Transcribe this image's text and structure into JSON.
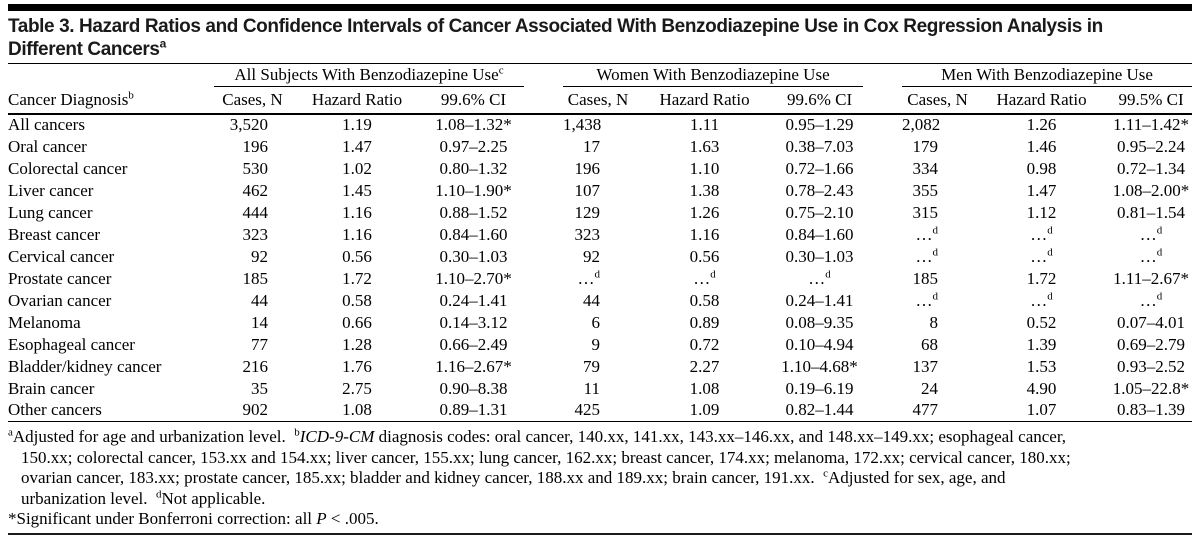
{
  "title": {
    "line1": "Table 3. Hazard Ratios and Confidence Intervals of Cancer Associated With Benzodiazepine Use in Cox Regression Analysis in",
    "line2": "Different Cancers",
    "sup": "a"
  },
  "table": {
    "row_header": {
      "label": "Cancer Diagnosis",
      "sup": "b"
    },
    "groups": [
      {
        "label": "All Subjects With Benzodiazepine Use",
        "sup": "c",
        "columns": [
          "Cases, N",
          "Hazard Ratio",
          "99.6% CI"
        ]
      },
      {
        "label": "Women With Benzodiazepine Use",
        "sup": "",
        "columns": [
          "Cases, N",
          "Hazard Ratio",
          "99.6% CI"
        ]
      },
      {
        "label": "Men With Benzodiazepine Use",
        "sup": "",
        "columns": [
          "Cases, N",
          "Hazard Ratio",
          "99.5% CI"
        ]
      }
    ],
    "rows": [
      {
        "diagnosis": "All cancers",
        "cells": [
          "3,520",
          "1.19",
          "1.08–1.32*",
          "1,438",
          "1.11",
          "0.95–1.29",
          "2,082",
          "1.26",
          "1.11–1.42*"
        ]
      },
      {
        "diagnosis": "Oral cancer",
        "cells": [
          "196",
          "1.47",
          "0.97–2.25",
          "17",
          "1.63",
          "0.38–7.03",
          "179",
          "1.46",
          "0.95–2.24"
        ]
      },
      {
        "diagnosis": "Colorectal cancer",
        "cells": [
          "530",
          "1.02",
          "0.80–1.32",
          "196",
          "1.10",
          "0.72–1.66",
          "334",
          "0.98",
          "0.72–1.34"
        ]
      },
      {
        "diagnosis": "Liver cancer",
        "cells": [
          "462",
          "1.45",
          "1.10–1.90*",
          "107",
          "1.38",
          "0.78–2.43",
          "355",
          "1.47",
          "1.08–2.00*"
        ]
      },
      {
        "diagnosis": "Lung cancer",
        "cells": [
          "444",
          "1.16",
          "0.88–1.52",
          "129",
          "1.26",
          "0.75–2.10",
          "315",
          "1.12",
          "0.81–1.54"
        ]
      },
      {
        "diagnosis": "Breast cancer",
        "cells": [
          "323",
          "1.16",
          "0.84–1.60",
          "323",
          "1.16",
          "0.84–1.60",
          "…^d",
          "…^d",
          "…^d"
        ]
      },
      {
        "diagnosis": "Cervical cancer",
        "cells": [
          "92",
          "0.56",
          "0.30–1.03",
          "92",
          "0.56",
          "0.30–1.03",
          "…^d",
          "…^d",
          "…^d"
        ]
      },
      {
        "diagnosis": "Prostate cancer",
        "cells": [
          "185",
          "1.72",
          "1.10–2.70*",
          "…^d",
          "…^d",
          "…^d",
          "185",
          "1.72",
          "1.11–2.67*"
        ]
      },
      {
        "diagnosis": "Ovarian cancer",
        "cells": [
          "44",
          "0.58",
          "0.24–1.41",
          "44",
          "0.58",
          "0.24–1.41",
          "…^d",
          "…^d",
          "…^d"
        ]
      },
      {
        "diagnosis": "Melanoma",
        "cells": [
          "14",
          "0.66",
          "0.14–3.12",
          "6",
          "0.89",
          "0.08–9.35",
          "8",
          "0.52",
          "0.07–4.01"
        ]
      },
      {
        "diagnosis": "Esophageal cancer",
        "cells": [
          "77",
          "1.28",
          "0.66–2.49",
          "9",
          "0.72",
          "0.10–4.94",
          "68",
          "1.39",
          "0.69–2.79"
        ]
      },
      {
        "diagnosis": "Bladder/kidney cancer",
        "cells": [
          "216",
          "1.76",
          "1.16–2.67*",
          "79",
          "2.27",
          "1.10–4.68*",
          "137",
          "1.53",
          "0.93–2.52"
        ]
      },
      {
        "diagnosis": "Brain cancer",
        "cells": [
          "35",
          "2.75",
          "0.90–8.38",
          "11",
          "1.08",
          "0.19–6.19",
          "24",
          "4.90",
          "1.05–22.8*"
        ]
      },
      {
        "diagnosis": "Other cancers",
        "cells": [
          "902",
          "1.08",
          "0.89–1.31",
          "425",
          "1.09",
          "0.82–1.44",
          "477",
          "1.07",
          "0.83–1.39"
        ]
      }
    ]
  },
  "footnotes": {
    "lines": [
      {
        "indent": false,
        "segments": [
          {
            "sup": "a"
          },
          {
            "text": "Adjusted for age and urbanization level.  "
          },
          {
            "sup": "b"
          },
          {
            "text": "ICD-9-CM",
            "italic": true
          },
          {
            "text": " diagnosis codes: oral cancer, 140.xx, 141.xx, 143.xx–146.xx, and 148.xx–149.xx; esophageal cancer,"
          }
        ]
      },
      {
        "indent": true,
        "segments": [
          {
            "text": "150.xx; colorectal cancer, 153.xx and 154.xx; liver cancer, 155.xx; lung cancer, 162.xx; breast cancer, 174.xx; melanoma, 172.xx; cervical cancer, 180.xx;"
          }
        ]
      },
      {
        "indent": true,
        "segments": [
          {
            "text": "ovarian cancer, 183.xx; prostate cancer, 185.xx; bladder and kidney cancer, 188.xx and 189.xx; brain cancer, 191.xx.  "
          },
          {
            "sup": "c"
          },
          {
            "text": "Adjusted for sex, age, and"
          }
        ]
      },
      {
        "indent": true,
        "segments": [
          {
            "text": "urbanization level.  "
          },
          {
            "sup": "d"
          },
          {
            "text": "Not applicable."
          }
        ]
      },
      {
        "indent": false,
        "segments": [
          {
            "text": "*Significant under Bonferroni correction: all "
          },
          {
            "text": "P",
            "italic": true
          },
          {
            "text": " < .005."
          }
        ]
      }
    ]
  }
}
